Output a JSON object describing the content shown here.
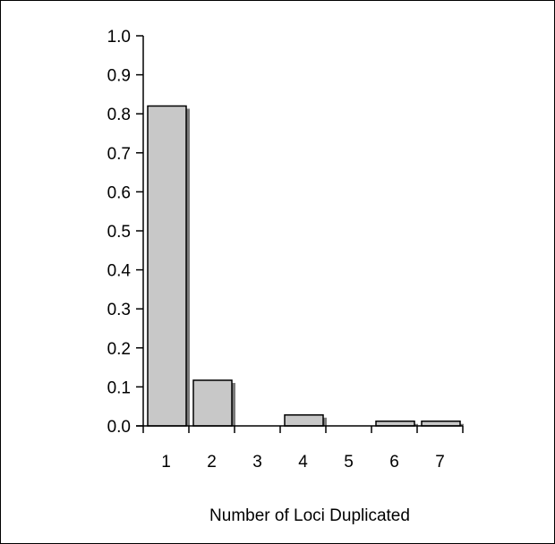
{
  "chart_data": {
    "type": "bar",
    "categories": [
      "1",
      "2",
      "3",
      "4",
      "5",
      "6",
      "7"
    ],
    "values": [
      0.82,
      0.117,
      0.0,
      0.028,
      0.0,
      0.012,
      0.012
    ],
    "title": "",
    "xlabel": "Number of Loci Duplicated",
    "ylabel": "",
    "ylim": [
      0.0,
      1.0
    ],
    "yticks": [
      "0.0",
      "0.1",
      "0.2",
      "0.3",
      "0.4",
      "0.5",
      "0.6",
      "0.7",
      "0.8",
      "0.9",
      "1.0"
    ],
    "grid": false,
    "legend": "none",
    "colors": {
      "bar_fill": "#c8c8c8",
      "bar_shadow": "#7a7a7a",
      "bar_stroke": "#000000",
      "axis": "#000000"
    }
  }
}
